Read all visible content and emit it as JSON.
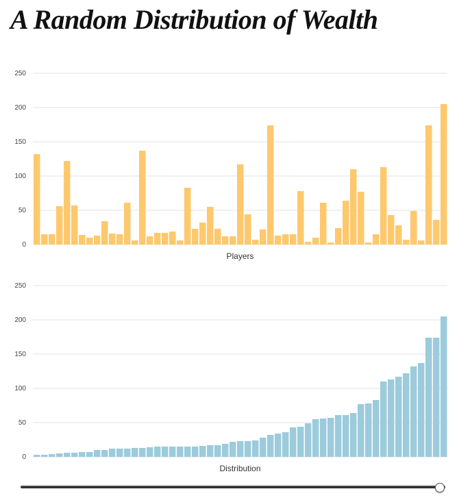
{
  "page": {
    "title": "A Random Distribution of Wealth"
  },
  "chart_data": [
    {
      "type": "bar",
      "xlabel": "Players",
      "ylabel": "",
      "ylim": [
        0,
        250
      ],
      "yticks": [
        0,
        50,
        100,
        150,
        200,
        250
      ],
      "grid": true,
      "color": "#fec86d",
      "values": [
        132,
        15,
        15,
        56,
        122,
        57,
        14,
        10,
        13,
        34,
        16,
        15,
        61,
        6,
        137,
        12,
        17,
        17,
        19,
        6,
        83,
        23,
        32,
        55,
        23,
        12,
        12,
        117,
        44,
        7,
        22,
        174,
        13,
        15,
        15,
        78,
        4,
        10,
        61,
        3,
        24,
        64,
        110,
        77,
        3,
        15,
        113,
        43,
        28,
        7,
        49,
        6,
        174,
        36,
        205
      ]
    },
    {
      "type": "bar",
      "xlabel": "Distribution",
      "ylabel": "",
      "ylim": [
        0,
        250
      ],
      "yticks": [
        0,
        50,
        100,
        150,
        200,
        250
      ],
      "grid": true,
      "color": "#9ccbdc",
      "values": [
        3,
        3,
        4,
        5,
        6,
        6,
        7,
        7,
        10,
        10,
        12,
        12,
        12,
        13,
        13,
        14,
        15,
        15,
        15,
        15,
        15,
        15,
        16,
        17,
        17,
        19,
        22,
        23,
        23,
        24,
        28,
        32,
        34,
        36,
        43,
        44,
        49,
        55,
        56,
        57,
        61,
        61,
        64,
        77,
        78,
        83,
        110,
        113,
        117,
        122,
        132,
        137,
        174,
        174,
        205
      ]
    }
  ],
  "slider": {
    "value": 1.0
  }
}
